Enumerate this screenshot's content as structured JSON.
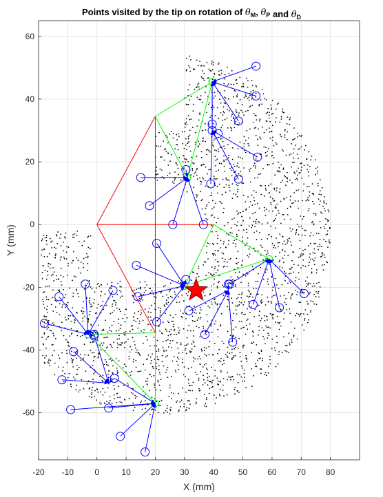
{
  "chart_data": {
    "type": "scatter",
    "title": {
      "prefix": "Points visited by the tip on rotation of",
      "theta": "θ",
      "sub_m": "M",
      "sub_p": "P",
      "sub_d": "D",
      "comma": ",",
      "and_word": "and"
    },
    "xlabel": "X (mm)",
    "ylabel": "Y (mm)",
    "xlim": [
      -20,
      90
    ],
    "ylim": [
      -75,
      65
    ],
    "xticks": [
      -20,
      -10,
      0,
      10,
      20,
      30,
      40,
      50,
      60,
      70,
      80
    ],
    "yticks": [
      -60,
      -40,
      -20,
      0,
      20,
      40,
      60
    ],
    "grid": true,
    "colors": {
      "red": "#ff0000",
      "green": "#00ff00",
      "blue": "#0000ff",
      "dots": "#000000",
      "star": "#ff0000",
      "star_edge": "#8b0000",
      "grid": "#dcdcdc",
      "axis": "#262626"
    },
    "red_segments": [
      [
        [
          0,
          0
        ],
        [
          20,
          34.5
        ]
      ],
      [
        [
          0,
          0
        ],
        [
          40,
          0
        ]
      ],
      [
        [
          0,
          0
        ],
        [
          20,
          -34.5
        ]
      ],
      [
        [
          20,
          34.5
        ],
        [
          20,
          -34.5
        ]
      ]
    ],
    "green_triangles": [
      {
        "base": [
          20,
          34.5
        ],
        "top": [
          39.5,
          45.5
        ],
        "bottom": [
          31,
          15
        ]
      },
      {
        "base": [
          40,
          0
        ],
        "top": [
          59,
          -11
        ],
        "bottom": [
          30,
          -19.5
        ]
      },
      {
        "base": [
          20,
          -34.5
        ],
        "top": [
          -3,
          -35
        ],
        "bottom": [
          20,
          -57
        ]
      }
    ],
    "blue_fans": [
      {
        "hub": [
          39.5,
          45.5
        ],
        "ends": [
          [
            54.5,
            50.5
          ],
          [
            54.5,
            41
          ],
          [
            39.5,
            30
          ],
          [
            48.5,
            33
          ],
          [
            39.5,
            32
          ]
        ]
      },
      {
        "hub": [
          39.5,
          30
        ],
        "ends": [
          [
            55,
            21.5
          ],
          [
            48.5,
            14.5
          ],
          [
            39,
            13
          ],
          [
            41.5,
            29
          ]
        ]
      },
      {
        "hub": [
          31,
          15
        ],
        "ends": [
          [
            15,
            15
          ],
          [
            30.5,
            17.5
          ],
          [
            18,
            6
          ],
          [
            26,
            0
          ],
          [
            36.5,
            0
          ]
        ]
      },
      {
        "hub": [
          45,
          -21
        ],
        "ends": [
          [
            45,
            -19
          ],
          [
            46.5,
            -37.5
          ],
          [
            37,
            -35
          ],
          [
            31.5,
            -27.5
          ]
        ]
      },
      {
        "hub": [
          59,
          -11
        ],
        "ends": [
          [
            71,
            -22
          ],
          [
            62.5,
            -26.5
          ],
          [
            53.5,
            -25.5
          ],
          [
            45.5,
            -19
          ]
        ]
      },
      {
        "hub": [
          30,
          -19.5
        ],
        "ends": [
          [
            14,
            -23
          ],
          [
            20.5,
            -31
          ],
          [
            13.5,
            -13
          ],
          [
            20.5,
            -6
          ],
          [
            30.5,
            -17.5
          ]
        ]
      },
      {
        "hub": [
          -3,
          -35
        ],
        "ends": [
          [
            -13,
            -23
          ],
          [
            -4,
            -19
          ],
          [
            5.5,
            -21
          ],
          [
            -18,
            -31.5
          ],
          [
            -1,
            -35.5
          ]
        ]
      },
      {
        "hub": [
          4,
          -50.5
        ],
        "ends": [
          [
            -12,
            -49.5
          ],
          [
            -8,
            -40.5
          ],
          [
            6,
            -49
          ],
          [
            -1,
            -35
          ]
        ]
      },
      {
        "hub": [
          20,
          -57
        ],
        "ends": [
          [
            8,
            -67.5
          ],
          [
            4,
            -58.5
          ],
          [
            -9,
            -59
          ],
          [
            16.5,
            -72.5
          ],
          [
            6,
            -49
          ]
        ]
      }
    ],
    "star_point": [
      34,
      -21
    ],
    "scatter_density": 2600
  }
}
